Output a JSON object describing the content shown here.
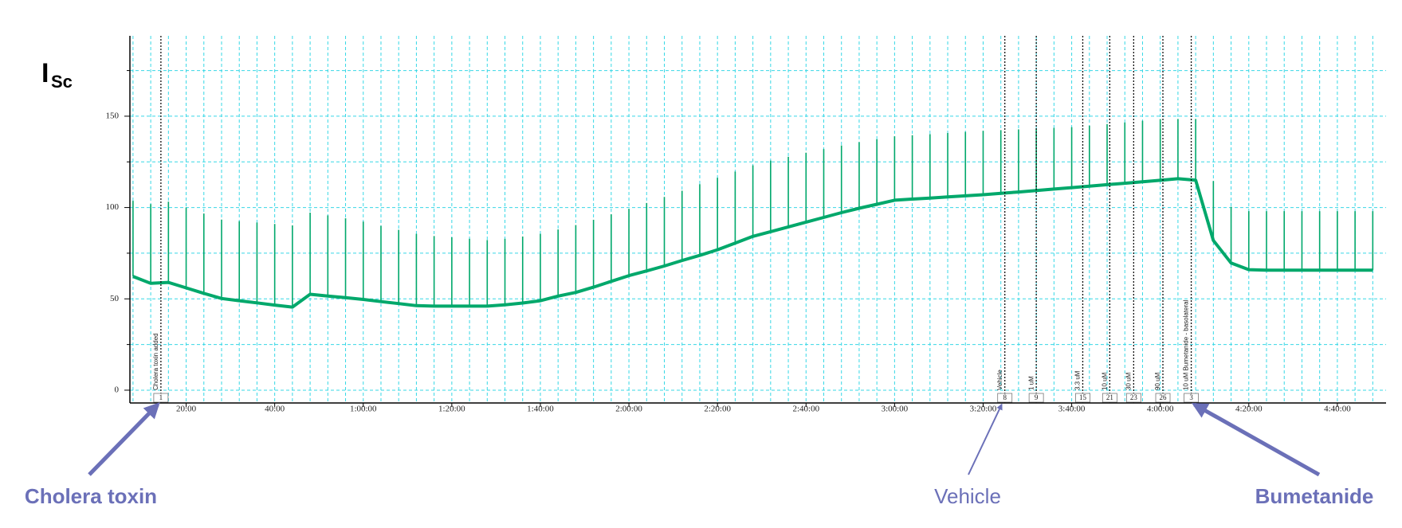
{
  "chart_data": {
    "type": "line",
    "ylabel": {
      "main": "I",
      "sub": "Sc"
    },
    "x": [
      8,
      12,
      16,
      20,
      24,
      28,
      32,
      36,
      40,
      44,
      48,
      52,
      56,
      60,
      64,
      68,
      72,
      76,
      80,
      84,
      88,
      92,
      96,
      100,
      104,
      108,
      112,
      116,
      120,
      124,
      128,
      132,
      136,
      140,
      144,
      148,
      152,
      156,
      160,
      164,
      168,
      172,
      176,
      180,
      184,
      188,
      192,
      196,
      200,
      204,
      208,
      212,
      216,
      220,
      224,
      228,
      232,
      236,
      240,
      244,
      248,
      252,
      256,
      260,
      264,
      268,
      272,
      276,
      280,
      284,
      288
    ],
    "series": [
      {
        "draw": "line",
        "color": "#00a86b",
        "values": [
          62.3,
          58.5,
          59,
          56,
          53,
          50.2,
          49,
          47.8,
          46.6,
          45.5,
          52.5,
          51.5,
          50.7,
          49.7,
          48.5,
          47.4,
          46.3,
          46,
          46,
          46,
          46,
          46.7,
          47.7,
          49,
          51.5,
          53.5,
          56.4,
          59.6,
          62.7,
          65.3,
          68,
          71,
          73.8,
          76.9,
          80.5,
          84.2,
          86.8,
          89.4,
          92,
          94.6,
          97.2,
          99.6,
          101.8,
          104,
          104.6,
          105.2,
          105.8,
          106.4,
          107,
          107.8,
          108.5,
          109.3,
          110.1,
          110.9,
          111.7,
          112.5,
          113.3,
          114.1,
          114.9,
          115.8,
          115,
          82,
          69.6,
          66,
          65.7,
          65.7,
          65.7,
          65.7,
          65.7,
          65.7,
          65.7
        ]
      },
      {
        "draw": "pulses",
        "color": "#00a86b",
        "values": [
          103.7,
          101.9,
          103.2,
          100,
          96.7,
          93.4,
          92.5,
          91.8,
          91,
          90.2,
          97.2,
          95.7,
          94.1,
          92.3,
          90,
          87.8,
          85.6,
          84.4,
          83.7,
          82.9,
          82.2,
          82.9,
          84.1,
          85.6,
          88,
          90.4,
          93.3,
          96.3,
          99.3,
          102.5,
          105.8,
          109.2,
          112.8,
          116.3,
          119.7,
          123.1,
          125.7,
          127.8,
          130,
          132,
          134,
          135.8,
          137.4,
          139,
          139.6,
          140.2,
          140.8,
          141.4,
          142,
          142.4,
          142.8,
          143.2,
          143.6,
          144,
          144.8,
          145.7,
          146.6,
          147.5,
          148.4,
          148.5,
          148.5,
          114.5,
          100.4,
          98,
          98,
          98,
          98,
          98,
          98,
          98,
          98
        ]
      }
    ],
    "xlim": [
      7.3,
      291
    ],
    "xticks": [
      {
        "value": 20,
        "label": "20:00"
      },
      {
        "value": 40,
        "label": "40:00"
      },
      {
        "value": 60,
        "label": "1:00:00"
      },
      {
        "value": 80,
        "label": "1:20:00"
      },
      {
        "value": 100,
        "label": "1:40:00"
      },
      {
        "value": 120,
        "label": "2:00:00"
      },
      {
        "value": 140,
        "label": "2:20:00"
      },
      {
        "value": 160,
        "label": "2:40:00"
      },
      {
        "value": 180,
        "label": "3:00:00"
      },
      {
        "value": 200,
        "label": "3:20:00"
      },
      {
        "value": 220,
        "label": "3:40:00"
      },
      {
        "value": 240,
        "label": "4:00:00"
      },
      {
        "value": 260,
        "label": "4:20:00"
      },
      {
        "value": 280,
        "label": "4:40:00"
      }
    ],
    "ylim": [
      -7,
      194
    ],
    "yticks": [
      0,
      50,
      100,
      150
    ],
    "minor_yticks": [
      25,
      75,
      125,
      175
    ],
    "grid": true,
    "events": [
      {
        "x": 14.3,
        "label": "Cholera toxin added",
        "box": "1"
      },
      {
        "x": 204.9,
        "label": "Vehicle",
        "box": "8"
      },
      {
        "x": 212,
        "label": "1 uM",
        "box": "9"
      },
      {
        "x": 222.5,
        "label": "3.3 uM",
        "box": "15"
      },
      {
        "x": 228.6,
        "label": "10 uM",
        "box": "21"
      },
      {
        "x": 234,
        "label": "30 uM",
        "box": "23"
      },
      {
        "x": 240.6,
        "label": "90 uM",
        "box": "26"
      },
      {
        "x": 247,
        "label": "10 uM Bumetanide - basolateral",
        "box": "3"
      }
    ],
    "annotations": [
      {
        "text": "Cholera toxin",
        "event": 0,
        "bold": true
      },
      {
        "text": "Vehicle",
        "event": 1,
        "bold": false
      },
      {
        "text": "Bumetanide",
        "event": 7,
        "bold": true
      }
    ]
  }
}
